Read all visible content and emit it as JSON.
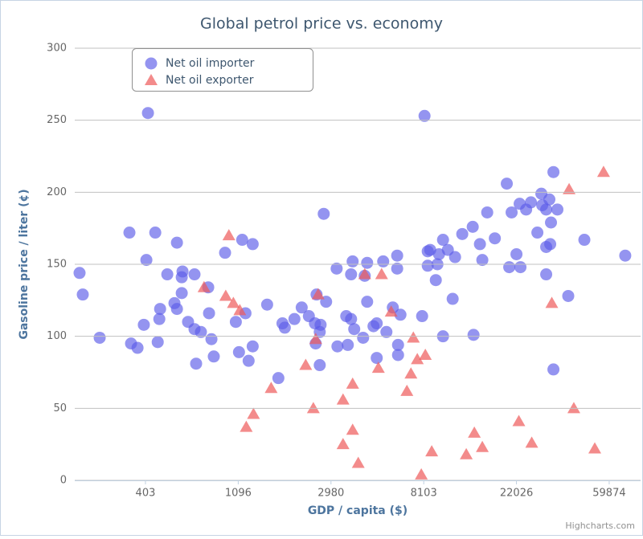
{
  "chart_data": {
    "type": "scatter",
    "title": "Global petrol price vs. economy",
    "x_label": "GDP / capita ($)",
    "y_label": "Gasoline price / liter (¢)",
    "xscale": "log",
    "xlim": [
      188,
      84000
    ],
    "xticks": [
      403,
      1096,
      2980,
      8103,
      22026,
      59874
    ],
    "ylim": [
      0,
      300
    ],
    "yticks": [
      0,
      50,
      100,
      150,
      200,
      250,
      300
    ],
    "grid": true,
    "legend": "top-left",
    "credits": "Highcharts.com",
    "series": [
      {
        "name": "Net oil importer",
        "color": "#5b5be8",
        "marker": "circle",
        "x": [
          198,
          205,
          246,
          339,
          345,
          370,
          414,
          407,
          396,
          448,
          472,
          468,
          460,
          510,
          551,
          566,
          566,
          596,
          601,
          596,
          638,
          684,
          684,
          696,
          733,
          793,
          800,
          821,
          842,
          951,
          1068,
          1105,
          1144,
          1185,
          1226,
          1281,
          1281,
          1497,
          1690,
          1766,
          1811,
          2009,
          2173,
          2348,
          2506,
          2527,
          2551,
          2640,
          2664,
          2640,
          2756,
          2828,
          3168,
          3195,
          3513,
          3573,
          3701,
          3701,
          3764,
          3829,
          4214,
          4288,
          4402,
          4402,
          4714,
          4881,
          4881,
          5233,
          5418,
          5805,
          6085,
          6085,
          6142,
          6142,
          6304,
          7963,
          8173,
          8460,
          8686,
          8460,
          9229,
          9391,
          9553,
          9975,
          9975,
          10510,
          11069,
          11360,
          12276,
          13743,
          13864,
          14853,
          15242,
          16068,
          17445,
          19845,
          20374,
          20903,
          22026,
          22797,
          22995,
          24449,
          25748,
          27599,
          28810,
          29074,
          30352,
          30352,
          30352,
          31409,
          31695,
          31960,
          32819,
          32819,
          34250,
          38499,
          45804,
          71190
        ],
        "values": [
          144,
          129,
          99,
          172,
          95,
          92,
          255,
          153,
          108,
          172,
          119,
          112,
          96,
          143,
          123,
          119,
          165,
          141,
          145,
          130,
          110,
          143,
          105,
          81,
          103,
          134,
          116,
          98,
          86,
          158,
          110,
          89,
          167,
          116,
          83,
          164,
          93,
          122,
          71,
          109,
          106,
          112,
          120,
          114,
          109,
          95,
          129,
          103,
          108,
          80,
          185,
          124,
          147,
          93,
          114,
          94,
          143,
          112,
          152,
          105,
          99,
          142,
          151,
          124,
          107,
          109,
          85,
          152,
          103,
          120,
          156,
          147,
          94,
          87,
          115,
          114,
          253,
          159,
          160,
          149,
          139,
          150,
          157,
          167,
          100,
          160,
          126,
          155,
          171,
          176,
          101,
          164,
          153,
          186,
          168,
          206,
          148,
          186,
          157,
          192,
          148,
          188,
          193,
          172,
          199,
          191,
          162,
          143,
          188,
          195,
          164,
          179,
          214,
          77,
          188,
          128,
          167,
          156
        ]
      },
      {
        "name": "Net oil exporter",
        "color": "#ee5a5a",
        "marker": "triangle",
        "x": [
          758,
          958,
          991,
          1040,
          1115,
          1195,
          1292,
          1563,
          2269,
          2464,
          2527,
          2595,
          3394,
          3394,
          3764,
          3764,
          3999,
          4288,
          4968,
          5144,
          5704,
          6758,
          7058,
          7244,
          7560,
          7892,
          8244,
          8832,
          12819,
          13986,
          15242,
          22599,
          25969,
          32246,
          38858,
          40894,
          51252,
          56342
        ],
        "values": [
          134,
          128,
          170,
          123,
          118,
          37,
          46,
          64,
          80,
          50,
          98,
          129,
          56,
          25,
          67,
          35,
          12,
          143,
          78,
          143,
          117,
          62,
          74,
          99,
          84,
          4,
          87,
          20,
          18,
          33,
          23,
          41,
          26,
          123,
          202,
          50,
          22,
          214
        ]
      }
    ]
  }
}
